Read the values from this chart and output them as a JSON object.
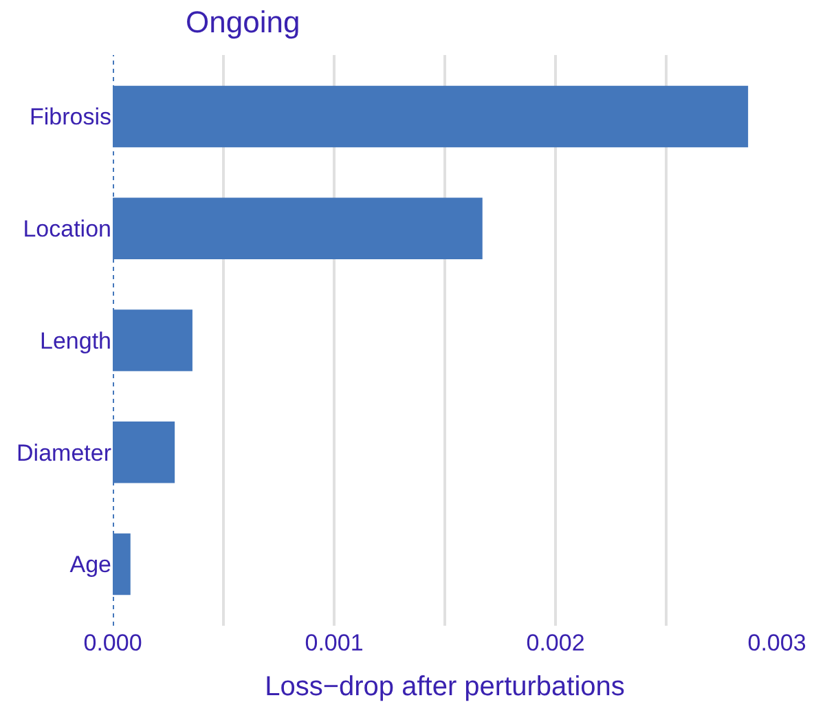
{
  "chart_data": {
    "type": "bar",
    "orientation": "horizontal",
    "title": "Ongoing",
    "xlabel": "Loss−drop after perturbations",
    "categories": [
      "Fibrosis",
      "Location",
      "Length",
      "Diameter",
      "Age"
    ],
    "values": [
      0.00287,
      0.00167,
      0.00036,
      0.00028,
      8e-05
    ],
    "color": "#4477bb",
    "xlim": [
      0,
      0.003
    ],
    "xticks": [
      {
        "value": 0.0,
        "label": "0.000"
      },
      {
        "value": 0.0005,
        "label": null
      },
      0.001,
      {
        "value": 0.0015,
        "label": null
      },
      0.002,
      {
        "value": 0.0025,
        "label": null
      },
      {
        "value": 0.003,
        "label": "0.003"
      }
    ],
    "grid": "x",
    "ref_lines": [
      {
        "axis": "x",
        "value": 0,
        "color": "#4477bb",
        "line_style": "dotted"
      }
    ]
  }
}
